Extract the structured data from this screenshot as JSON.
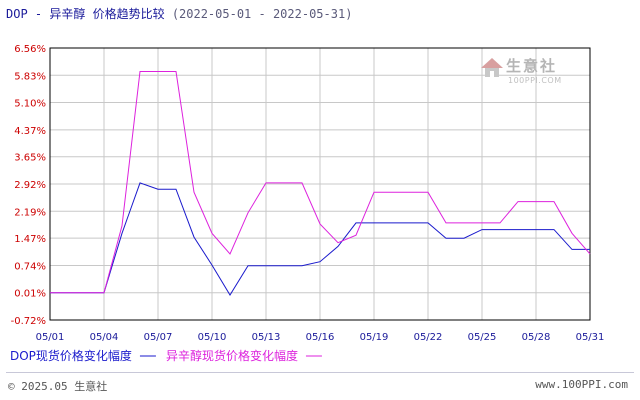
{
  "title": {
    "main": "DOP - 异辛醇 价格趋势比较",
    "range": "(2022-05-01 - 2022-05-31)"
  },
  "footer": {
    "copyright": "© 2025.05 生意社",
    "site": "www.100PPI.com"
  },
  "watermark": {
    "text": "生意社",
    "url": "100PPI.COM",
    "icon": "house-logo-icon"
  },
  "colors": {
    "series_dop": "#1a1acc",
    "series_2eh": "#dd22dd",
    "tick_y": "#cc0000",
    "tick_x": "#1a1a9a",
    "grid": "#c8c8c8",
    "axis": "#000000"
  },
  "chart_data": {
    "type": "line",
    "title": "DOP - 异辛醇 价格趋势比较",
    "subtitle": "(2022-05-01 - 2022-05-31)",
    "xlabel": "",
    "ylabel": "",
    "ylim": [
      -0.72,
      6.56
    ],
    "yticks": [
      "6.56%",
      "5.83%",
      "5.10%",
      "4.37%",
      "3.65%",
      "2.92%",
      "2.19%",
      "1.47%",
      "0.74%",
      "0.01%",
      "-0.72%"
    ],
    "ytick_values": [
      6.56,
      5.83,
      5.1,
      4.37,
      3.65,
      2.92,
      2.19,
      1.47,
      0.74,
      0.01,
      -0.72
    ],
    "xticks": [
      "05/01",
      "05/04",
      "05/07",
      "05/10",
      "05/13",
      "05/16",
      "05/19",
      "05/22",
      "05/25",
      "05/28",
      "05/31"
    ],
    "xtick_days": [
      1,
      4,
      7,
      10,
      13,
      16,
      19,
      22,
      25,
      28,
      31
    ],
    "grid": true,
    "legend_position": "bottom",
    "series": [
      {
        "name": "DOP现货价格变化幅度",
        "color": "#1a1acc",
        "x": [
          "05/01",
          "05/02",
          "05/03",
          "05/04",
          "05/05",
          "05/06",
          "05/07",
          "05/08",
          "05/09",
          "05/10",
          "05/11",
          "05/12",
          "05/13",
          "05/14",
          "05/15",
          "05/16",
          "05/17",
          "05/18",
          "05/19",
          "05/20",
          "05/21",
          "05/22",
          "05/23",
          "05/24",
          "05/25",
          "05/26",
          "05/27",
          "05/28",
          "05/29",
          "05/30",
          "05/31"
        ],
        "values": [
          0.01,
          0.01,
          0.01,
          0.01,
          1.6,
          2.95,
          2.78,
          2.78,
          1.5,
          0.75,
          -0.05,
          0.73,
          0.73,
          0.73,
          0.73,
          0.84,
          1.25,
          1.88,
          1.88,
          1.88,
          1.88,
          1.88,
          1.47,
          1.47,
          1.7,
          1.7,
          1.7,
          1.7,
          1.7,
          1.17,
          1.17
        ]
      },
      {
        "name": "异辛醇现货价格变化幅度",
        "color": "#dd22dd",
        "x": [
          "05/01",
          "05/02",
          "05/03",
          "05/04",
          "05/05",
          "05/06",
          "05/07",
          "05/08",
          "05/09",
          "05/10",
          "05/11",
          "05/12",
          "05/13",
          "05/14",
          "05/15",
          "05/16",
          "05/17",
          "05/18",
          "05/19",
          "05/20",
          "05/21",
          "05/22",
          "05/23",
          "05/24",
          "05/25",
          "05/26",
          "05/27",
          "05/28",
          "05/29",
          "05/30",
          "05/31"
        ],
        "values": [
          0.01,
          0.01,
          0.01,
          0.01,
          1.8,
          5.93,
          5.93,
          5.93,
          2.7,
          1.6,
          1.05,
          2.15,
          2.95,
          2.95,
          2.95,
          1.85,
          1.35,
          1.55,
          2.7,
          2.7,
          2.7,
          2.7,
          1.88,
          1.88,
          1.88,
          1.88,
          2.45,
          2.45,
          2.45,
          1.6,
          1.05
        ]
      }
    ]
  }
}
